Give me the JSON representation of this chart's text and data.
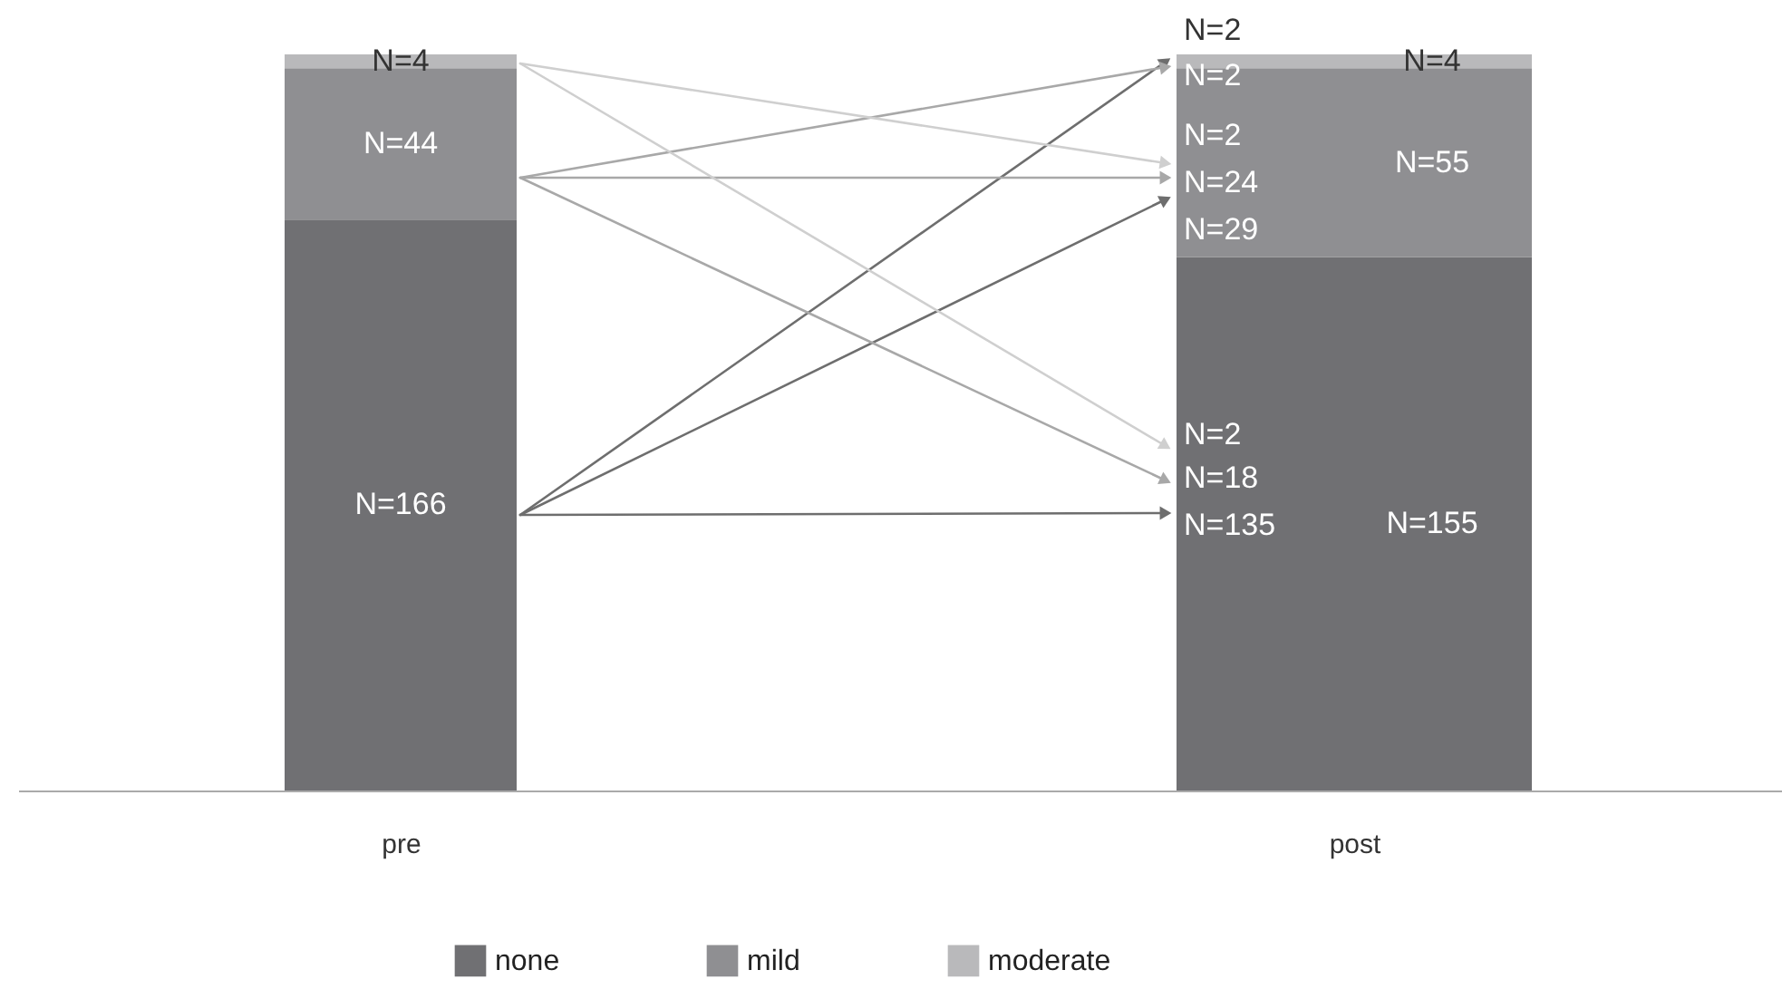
{
  "chart_data": {
    "type": "bar",
    "stacked": true,
    "categories": [
      "pre",
      "post"
    ],
    "legend": "bottom",
    "grid": false,
    "series": [
      {
        "name": "none",
        "color": "#707073",
        "values": [
          166,
          155
        ],
        "value_labels": [
          "N=166",
          "N=155"
        ]
      },
      {
        "name": "mild",
        "color": "#8f8f92",
        "values": [
          44,
          55
        ],
        "value_labels": [
          "N=44",
          "N=55"
        ]
      },
      {
        "name": "moderate",
        "color": "#b9b9bb",
        "values": [
          4,
          4
        ],
        "value_labels": [
          "N=4",
          "N=4"
        ]
      }
    ],
    "annotations": [
      "N=2",
      "N=2",
      "N=2",
      "N=24",
      "N=29",
      "N=2",
      "N=18",
      "N=135"
    ]
  }
}
